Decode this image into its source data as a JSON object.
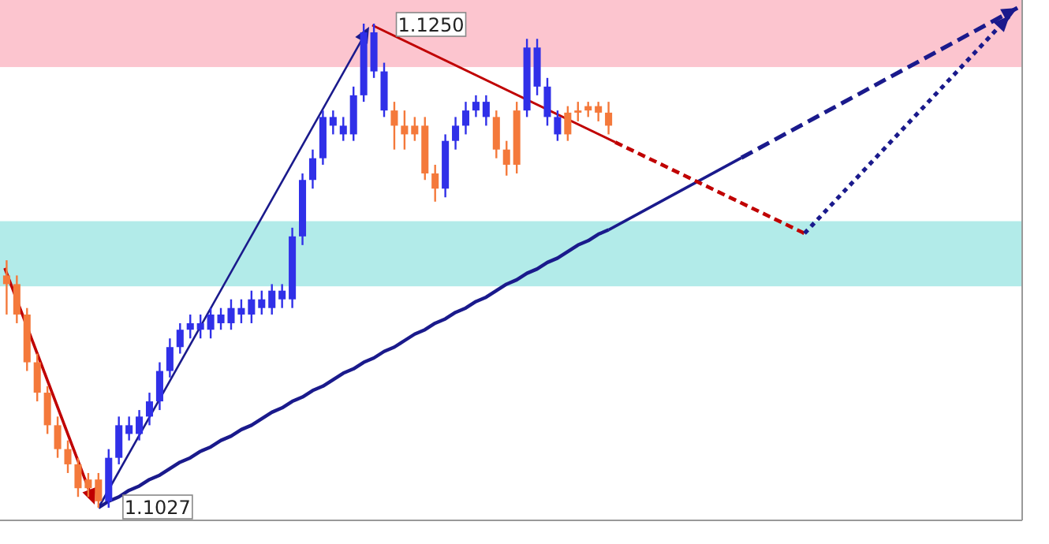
{
  "chart_data": {
    "type": "candlestick",
    "categories": [
      null,
      null,
      null,
      null,
      null,
      null,
      null,
      null,
      null,
      null,
      null,
      null,
      null,
      null,
      null,
      null,
      null,
      null,
      null,
      null,
      null,
      null,
      null,
      null,
      null,
      null,
      null,
      null,
      null,
      null,
      null,
      null,
      null,
      null,
      null,
      null,
      null,
      null,
      null,
      null,
      null,
      null,
      null,
      null,
      null,
      null,
      null,
      null,
      null,
      null,
      null,
      null,
      null,
      null,
      null,
      null,
      null,
      null,
      null,
      null
    ],
    "ohlc": [
      [
        1.1134,
        1.1141,
        1.1116,
        1.113
      ],
      [
        1.113,
        1.1134,
        1.1112,
        1.1116
      ],
      [
        1.1116,
        1.1119,
        1.109,
        1.1094
      ],
      [
        1.1094,
        1.1098,
        1.1076,
        1.108
      ],
      [
        1.108,
        1.1083,
        1.1061,
        1.1065
      ],
      [
        1.1065,
        1.1069,
        1.105,
        1.1054
      ],
      [
        1.1054,
        1.1058,
        1.1043,
        1.1047
      ],
      [
        1.1047,
        1.105,
        1.1032,
        1.1036
      ],
      [
        1.104,
        1.1043,
        1.1032,
        1.1036
      ],
      [
        1.104,
        1.1043,
        1.1027,
        1.103
      ],
      [
        1.103,
        1.1054,
        1.1027,
        1.105
      ],
      [
        1.105,
        1.1069,
        1.1047,
        1.1065
      ],
      [
        1.1061,
        1.1069,
        1.1058,
        1.1065
      ],
      [
        1.1061,
        1.1072,
        1.1058,
        1.1069
      ],
      [
        1.1069,
        1.108,
        1.1065,
        1.1076
      ],
      [
        1.1076,
        1.1094,
        1.1072,
        1.109
      ],
      [
        1.109,
        1.1105,
        1.1087,
        1.1101
      ],
      [
        1.1101,
        1.1112,
        1.1098,
        1.1109
      ],
      [
        1.1109,
        1.1116,
        1.1105,
        1.1112
      ],
      [
        1.1109,
        1.1116,
        1.1105,
        1.1112
      ],
      [
        1.1109,
        1.1119,
        1.1105,
        1.1116
      ],
      [
        1.1112,
        1.1119,
        1.1109,
        1.1116
      ],
      [
        1.1112,
        1.1123,
        1.1109,
        1.1119
      ],
      [
        1.1116,
        1.1123,
        1.1112,
        1.1119
      ],
      [
        1.1116,
        1.1127,
        1.1112,
        1.1123
      ],
      [
        1.1119,
        1.1127,
        1.1116,
        1.1123
      ],
      [
        1.1119,
        1.113,
        1.1116,
        1.1127
      ],
      [
        1.1123,
        1.113,
        1.1119,
        1.1127
      ],
      [
        1.1123,
        1.1156,
        1.1119,
        1.1152
      ],
      [
        1.1152,
        1.1181,
        1.1148,
        1.1178
      ],
      [
        1.1178,
        1.1192,
        1.1174,
        1.1188
      ],
      [
        1.1188,
        1.121,
        1.1185,
        1.1207
      ],
      [
        1.1203,
        1.121,
        1.1199,
        1.1207
      ],
      [
        1.1199,
        1.1207,
        1.1196,
        1.1203
      ],
      [
        1.1199,
        1.1221,
        1.1196,
        1.1217
      ],
      [
        1.1217,
        1.125,
        1.1214,
        1.1246
      ],
      [
        1.1228,
        1.125,
        1.1225,
        1.1246
      ],
      [
        1.121,
        1.1232,
        1.1207,
        1.1228
      ],
      [
        1.121,
        1.1214,
        1.1192,
        1.1203
      ],
      [
        1.1203,
        1.121,
        1.1192,
        1.1199
      ],
      [
        1.1203,
        1.1207,
        1.1196,
        1.1199
      ],
      [
        1.1203,
        1.1207,
        1.1178,
        1.1181
      ],
      [
        1.1181,
        1.1185,
        1.1168,
        1.1174
      ],
      [
        1.1174,
        1.1199,
        1.117,
        1.1196
      ],
      [
        1.1196,
        1.1207,
        1.1192,
        1.1203
      ],
      [
        1.1203,
        1.1214,
        1.1199,
        1.121
      ],
      [
        1.121,
        1.1217,
        1.1207,
        1.1214
      ],
      [
        1.1207,
        1.1217,
        1.1203,
        1.1214
      ],
      [
        1.1207,
        1.121,
        1.1188,
        1.1192
      ],
      [
        1.1192,
        1.1196,
        1.118,
        1.1185
      ],
      [
        1.121,
        1.1214,
        1.1181,
        1.1185
      ],
      [
        1.121,
        1.1243,
        1.1207,
        1.1239
      ],
      [
        1.1221,
        1.1243,
        1.1217,
        1.1239
      ],
      [
        1.1207,
        1.1225,
        1.1203,
        1.1221
      ],
      [
        1.1199,
        1.121,
        1.1196,
        1.1207
      ],
      [
        1.1209,
        1.1212,
        1.1196,
        1.1199
      ],
      [
        1.121,
        1.1214,
        1.1205,
        1.1209
      ],
      [
        1.1212,
        1.1214,
        1.1207,
        1.121
      ],
      [
        1.1212,
        1.1214,
        1.1205,
        1.1209
      ],
      [
        1.1209,
        1.1214,
        1.1199,
        1.1203
      ]
    ],
    "colors": [
      "#f4793b",
      "#f4793b",
      "#f4793b",
      "#f4793b",
      "#f4793b",
      "#f4793b",
      "#f4793b",
      "#f4793b",
      "#f4793b",
      "#f4793b",
      "#3030e8",
      "#3030e8",
      "#3030e8",
      "#3030e8",
      "#3030e8",
      "#3030e8",
      "#3030e8",
      "#3030e8",
      "#3030e8",
      "#3030e8",
      "#3030e8",
      "#3030e8",
      "#3030e8",
      "#3030e8",
      "#3030e8",
      "#3030e8",
      "#3030e8",
      "#3030e8",
      "#3030e8",
      "#3030e8",
      "#3030e8",
      "#3030e8",
      "#3030e8",
      "#3030e8",
      "#3030e8",
      "#3030e8",
      "#3030e8",
      "#3030e8",
      "#f4793b",
      "#f4793b",
      "#f4793b",
      "#f4793b",
      "#f4793b",
      "#3030e8",
      "#3030e8",
      "#3030e8",
      "#3030e8",
      "#3030e8",
      "#f4793b",
      "#f4793b",
      "#f4793b",
      "#3030e8",
      "#3030e8",
      "#3030e8",
      "#3030e8",
      "#f4793b",
      "#f4793b",
      "#f4793b",
      "#f4793b",
      "#f4793b"
    ],
    "series": [
      {
        "type": "line",
        "color": "#1a1a8c",
        "line_style": "solid",
        "values": [
          null,
          null,
          null,
          null,
          null,
          null,
          null,
          null,
          null,
          1.1027,
          1.103,
          1.1032,
          1.1035,
          1.1037,
          1.104,
          1.1042,
          1.1045,
          1.1048,
          1.105,
          1.1053,
          1.1055,
          1.1058,
          1.106,
          1.1063,
          1.1065,
          1.1068,
          1.1071,
          1.1073,
          1.1076,
          1.1078,
          1.1081,
          1.1083,
          1.1086,
          1.1089,
          1.1091,
          1.1094,
          1.1096,
          1.1099,
          1.1101,
          1.1104,
          1.1107,
          1.1109,
          1.1112,
          1.1114,
          1.1117,
          1.1119,
          1.1122,
          1.1124,
          1.1127,
          1.113,
          1.1132,
          1.1135,
          1.1137,
          1.114,
          1.1142,
          1.1145,
          1.1148,
          1.115,
          1.1153,
          1.1155
        ]
      }
    ],
    "bands": [
      {
        "axis": "y",
        "from": 1.123,
        "to": 1.1261,
        "color": "#fcc5cf"
      },
      {
        "axis": "y",
        "from": 1.1129,
        "to": 1.1159,
        "color": "#b2ebe9"
      }
    ],
    "annotations": [
      "1.1250",
      "1.1027"
    ],
    "grid": false
  }
}
